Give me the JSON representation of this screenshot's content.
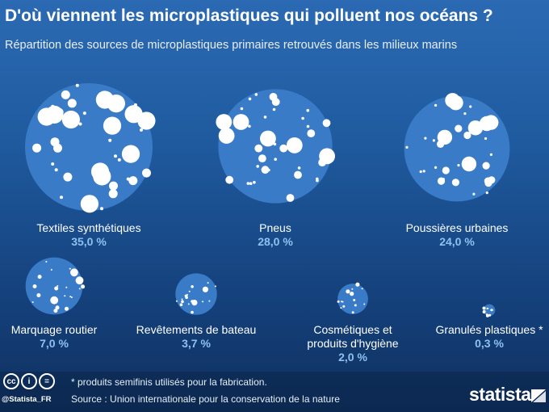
{
  "header": {
    "title": "D'où viennent les microplastiques qui polluent nos océans ?",
    "subtitle": "Répartition des sources de microplastiques primaires retrouvés dans les milieux marins"
  },
  "chart_data": {
    "type": "bubble",
    "title": "D'où viennent les microplastiques qui polluent nos océans ?",
    "subtitle": "Répartition des sources de microplastiques primaires retrouvés dans les milieux marins",
    "unit": "%",
    "categories": [
      "Textiles synthétiques",
      "Pneus",
      "Poussières urbaines",
      "Marquage routier",
      "Revêtements de bateau",
      "Cosmétiques et produits d'hygiène",
      "Granulés plastiques *"
    ],
    "values": [
      35.0,
      28.0,
      24.0,
      7.0,
      3.7,
      2.0,
      0.3
    ],
    "value_labels": [
      "35,0 %",
      "28,0 %",
      "24,0 %",
      "7,0 %",
      "3,7 %",
      "2,0 %",
      "0,3 %"
    ],
    "bubble_color": "#3a7bc8",
    "value_color": "#8ec1f0"
  },
  "footer": {
    "note": "* produits semifinis utilisés pour la fabrication.",
    "source": "Source : Union internationale pour la conservation de la nature",
    "handle": "@Statista_FR",
    "brand": "statista",
    "license_icons": [
      "cc-icon",
      "by-icon",
      "nd-icon"
    ],
    "license_labels": [
      "cc",
      "i",
      "="
    ]
  }
}
